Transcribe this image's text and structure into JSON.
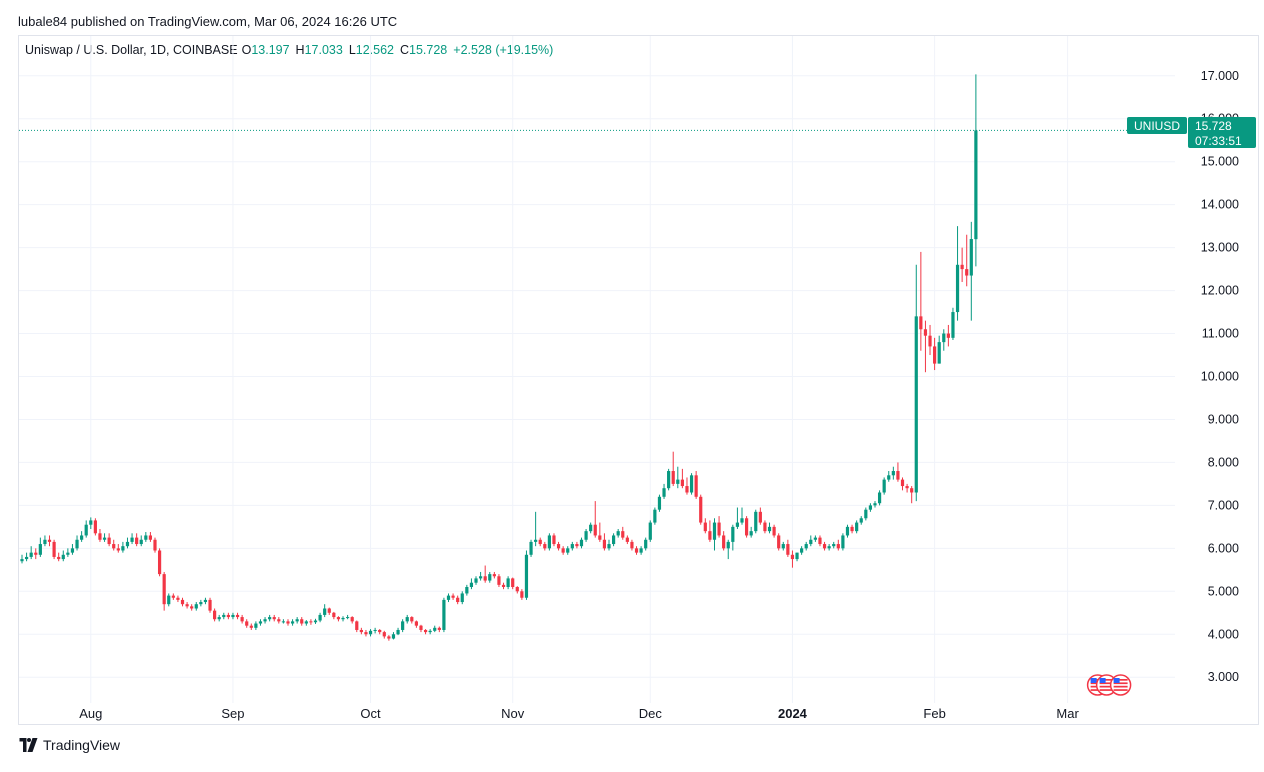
{
  "byline": "lubale84 published on TradingView.com, Mar 06, 2024 16:26 UTC",
  "legend": {
    "symbol": "Uniswap / U.S. Dollar, 1D, COINBASE",
    "o_label": "O",
    "o": "13.197",
    "h_label": "H",
    "h": "17.033",
    "l_label": "L",
    "l": "12.562",
    "c_label": "C",
    "c": "15.728",
    "change": "+2.528 (+19.15%)"
  },
  "price_tag": {
    "symbol": "UNIUSD",
    "price": "15.728",
    "countdown": "07:33:51"
  },
  "footer": {
    "brand": "TradingView",
    "logo_icon": "tradingview-logo-icon"
  },
  "colors": {
    "up": "#089981",
    "down": "#f23645",
    "grid": "#f0f3fa",
    "text": "#131722"
  },
  "chart_data": {
    "type": "candlestick",
    "y_axis": {
      "ticks": [
        "17.000",
        "16.000",
        "15.000",
        "14.000",
        "13.000",
        "12.000",
        "11.000",
        "10.000",
        "9.000",
        "8.000",
        "7.000",
        "6.000",
        "5.000",
        "4.000",
        "3.000"
      ],
      "range": [
        2.4,
        17.6
      ]
    },
    "x_axis": {
      "labels": [
        {
          "text": "Aug",
          "date": "2023-08-01",
          "bold": false
        },
        {
          "text": "Sep",
          "date": "2023-09-01",
          "bold": false
        },
        {
          "text": "Oct",
          "date": "2023-10-01",
          "bold": false
        },
        {
          "text": "Nov",
          "date": "2023-11-01",
          "bold": false
        },
        {
          "text": "Dec",
          "date": "2023-12-01",
          "bold": false
        },
        {
          "text": "2024",
          "date": "2024-01-01",
          "bold": true
        },
        {
          "text": "Feb",
          "date": "2024-02-01",
          "bold": false
        },
        {
          "text": "Mar",
          "date": "2024-03-01",
          "bold": false
        }
      ]
    },
    "start_date": "2023-07-17",
    "close": [
      5.75,
      5.8,
      5.9,
      5.85,
      6.1,
      6.2,
      6.15,
      5.8,
      5.75,
      5.85,
      5.9,
      6.0,
      6.2,
      6.3,
      6.55,
      6.65,
      6.35,
      6.2,
      6.25,
      6.1,
      6.0,
      5.95,
      6.05,
      6.15,
      6.25,
      6.1,
      6.2,
      6.3,
      6.2,
      5.95,
      5.4,
      4.7,
      4.9,
      4.85,
      4.8,
      4.7,
      4.65,
      4.6,
      4.7,
      4.75,
      4.8,
      4.55,
      4.35,
      4.4,
      4.45,
      4.4,
      4.45,
      4.4,
      4.3,
      4.2,
      4.15,
      4.25,
      4.3,
      4.35,
      4.4,
      4.35,
      4.3,
      4.3,
      4.25,
      4.3,
      4.35,
      4.25,
      4.3,
      4.28,
      4.32,
      4.45,
      4.6,
      4.5,
      4.4,
      4.35,
      4.38,
      4.4,
      4.3,
      4.1,
      4.05,
      4.0,
      4.08,
      4.1,
      4.05,
      3.95,
      3.9,
      4.0,
      4.1,
      4.3,
      4.4,
      4.3,
      4.2,
      4.1,
      4.05,
      4.08,
      4.15,
      4.1,
      4.8,
      4.9,
      4.85,
      4.75,
      4.95,
      5.1,
      5.2,
      5.3,
      5.35,
      5.25,
      5.4,
      5.35,
      5.15,
      5.1,
      5.3,
      5.1,
      5.0,
      4.85,
      5.85,
      6.15,
      6.2,
      6.1,
      6.0,
      6.3,
      6.1,
      6.0,
      5.9,
      6.0,
      6.1,
      6.05,
      6.2,
      6.4,
      6.55,
      6.3,
      6.2,
      6.0,
      6.1,
      6.3,
      6.4,
      6.25,
      6.15,
      6.0,
      5.9,
      6.0,
      6.2,
      6.6,
      6.9,
      7.2,
      7.4,
      7.8,
      7.5,
      7.6,
      7.45,
      7.3,
      7.7,
      7.2,
      6.6,
      6.4,
      6.2,
      6.6,
      6.3,
      6.0,
      6.15,
      6.5,
      6.6,
      6.7,
      6.3,
      6.4,
      6.85,
      6.6,
      6.4,
      6.5,
      6.3,
      6.0,
      6.1,
      5.85,
      5.75,
      5.9,
      6.0,
      6.1,
      6.2,
      6.25,
      6.1,
      6.0,
      6.05,
      6.1,
      6.0,
      6.3,
      6.5,
      6.4,
      6.6,
      6.7,
      6.9,
      7.0,
      7.05,
      7.3,
      7.6,
      7.7,
      7.8,
      7.6,
      7.45,
      7.4,
      7.3,
      11.4,
      11.1,
      10.95,
      10.7,
      10.3,
      10.8,
      11.0,
      10.9,
      11.5,
      12.6,
      12.5,
      12.35,
      13.2,
      15.728
    ],
    "open": [
      5.7,
      5.75,
      5.8,
      5.9,
      5.85,
      6.1,
      6.2,
      6.15,
      5.8,
      5.75,
      5.85,
      5.9,
      6.0,
      6.2,
      6.3,
      6.55,
      6.65,
      6.35,
      6.2,
      6.25,
      6.1,
      6.0,
      5.95,
      6.05,
      6.15,
      6.25,
      6.1,
      6.2,
      6.3,
      6.2,
      5.95,
      5.4,
      4.7,
      4.9,
      4.85,
      4.8,
      4.7,
      4.65,
      4.6,
      4.7,
      4.75,
      4.8,
      4.55,
      4.35,
      4.4,
      4.45,
      4.4,
      4.45,
      4.4,
      4.3,
      4.2,
      4.15,
      4.25,
      4.3,
      4.35,
      4.4,
      4.35,
      4.3,
      4.3,
      4.25,
      4.3,
      4.35,
      4.25,
      4.3,
      4.28,
      4.32,
      4.45,
      4.6,
      4.5,
      4.4,
      4.35,
      4.38,
      4.4,
      4.3,
      4.1,
      4.05,
      4.0,
      4.08,
      4.1,
      4.05,
      3.95,
      3.9,
      4.0,
      4.1,
      4.3,
      4.4,
      4.3,
      4.2,
      4.1,
      4.05,
      4.08,
      4.15,
      4.1,
      4.8,
      4.9,
      4.85,
      4.75,
      4.95,
      5.1,
      5.2,
      5.3,
      5.35,
      5.25,
      5.4,
      5.35,
      5.15,
      5.1,
      5.3,
      5.1,
      5.0,
      4.85,
      5.85,
      6.15,
      6.2,
      6.1,
      6.0,
      6.3,
      6.1,
      6.0,
      5.9,
      6.0,
      6.1,
      6.05,
      6.2,
      6.4,
      6.55,
      6.3,
      6.2,
      6.0,
      6.1,
      6.3,
      6.4,
      6.25,
      6.15,
      6.0,
      5.9,
      6.0,
      6.2,
      6.6,
      6.9,
      7.2,
      7.4,
      7.8,
      7.5,
      7.6,
      7.45,
      7.3,
      7.7,
      7.2,
      6.6,
      6.4,
      6.2,
      6.6,
      6.3,
      6.0,
      6.15,
      6.5,
      6.6,
      6.7,
      6.3,
      6.4,
      6.85,
      6.6,
      6.4,
      6.5,
      6.3,
      6.0,
      6.1,
      5.85,
      5.75,
      5.9,
      6.0,
      6.1,
      6.2,
      6.25,
      6.1,
      6.0,
      6.05,
      6.1,
      6.0,
      6.3,
      6.5,
      6.4,
      6.6,
      6.7,
      6.9,
      7.0,
      7.05,
      7.3,
      7.6,
      7.7,
      7.8,
      7.6,
      7.45,
      7.4,
      7.3,
      11.4,
      11.1,
      10.95,
      10.7,
      10.3,
      10.8,
      11.0,
      10.9,
      11.5,
      12.6,
      12.5,
      12.35,
      13.197
    ],
    "high": [
      5.85,
      5.9,
      6.05,
      6.0,
      6.25,
      6.3,
      6.3,
      6.2,
      5.9,
      5.95,
      6.0,
      6.1,
      6.3,
      6.4,
      6.65,
      6.72,
      6.7,
      6.45,
      6.35,
      6.35,
      6.2,
      6.1,
      6.15,
      6.25,
      6.35,
      6.35,
      6.3,
      6.38,
      6.38,
      6.25,
      6.0,
      5.45,
      4.95,
      4.95,
      4.9,
      4.85,
      4.75,
      4.7,
      4.75,
      4.8,
      4.85,
      4.85,
      4.6,
      4.45,
      4.5,
      4.5,
      4.5,
      4.5,
      4.45,
      4.35,
      4.25,
      4.3,
      4.35,
      4.4,
      4.45,
      4.45,
      4.4,
      4.35,
      4.35,
      4.35,
      4.4,
      4.4,
      4.33,
      4.35,
      4.36,
      4.5,
      4.7,
      4.62,
      4.52,
      4.42,
      4.42,
      4.45,
      4.42,
      4.32,
      4.15,
      4.1,
      4.12,
      4.15,
      4.12,
      4.08,
      3.98,
      4.05,
      4.15,
      4.35,
      4.45,
      4.42,
      4.32,
      4.22,
      4.12,
      4.12,
      4.2,
      4.18,
      4.85,
      4.95,
      4.95,
      4.9,
      5.0,
      5.15,
      5.3,
      5.35,
      5.45,
      5.6,
      5.45,
      5.45,
      5.4,
      5.2,
      5.35,
      5.32,
      5.12,
      5.05,
      5.95,
      6.2,
      6.85,
      6.25,
      6.15,
      6.35,
      6.35,
      6.15,
      6.05,
      6.05,
      6.15,
      6.15,
      6.25,
      6.45,
      6.6,
      7.1,
      6.6,
      6.35,
      6.2,
      6.35,
      6.45,
      6.5,
      6.3,
      6.2,
      6.05,
      6.05,
      6.25,
      6.65,
      6.95,
      7.25,
      7.5,
      7.85,
      8.25,
      7.9,
      7.85,
      7.65,
      7.75,
      7.8,
      7.25,
      6.7,
      6.65,
      6.7,
      6.75,
      6.4,
      6.2,
      6.55,
      6.95,
      6.95,
      6.75,
      6.5,
      6.9,
      6.95,
      6.65,
      6.6,
      6.55,
      6.35,
      6.15,
      6.2,
      5.95,
      5.9,
      6.05,
      6.15,
      6.3,
      6.3,
      6.3,
      6.15,
      6.1,
      6.15,
      6.2,
      6.35,
      6.55,
      6.55,
      6.65,
      6.75,
      6.95,
      7.05,
      7.1,
      7.35,
      7.65,
      7.8,
      7.9,
      8.0,
      7.65,
      7.5,
      7.45,
      12.6,
      12.9,
      11.3,
      11.2,
      10.9,
      10.95,
      11.1,
      11.2,
      11.6,
      13.5,
      13.0,
      13.3,
      13.6,
      17.033
    ],
    "low": [
      5.65,
      5.7,
      5.75,
      5.75,
      5.8,
      6.05,
      6.05,
      5.75,
      5.7,
      5.7,
      5.8,
      5.85,
      5.95,
      6.15,
      6.25,
      6.45,
      6.3,
      6.15,
      6.15,
      6.05,
      5.95,
      5.9,
      5.9,
      6.0,
      6.1,
      6.05,
      6.05,
      6.15,
      6.15,
      5.9,
      5.35,
      4.55,
      4.65,
      4.8,
      4.75,
      4.65,
      4.6,
      4.55,
      4.55,
      4.65,
      4.7,
      4.5,
      4.3,
      4.3,
      4.35,
      4.35,
      4.35,
      4.35,
      4.25,
      4.15,
      4.1,
      4.1,
      4.2,
      4.25,
      4.3,
      4.3,
      4.25,
      4.25,
      4.2,
      4.2,
      4.25,
      4.2,
      4.2,
      4.22,
      4.24,
      4.28,
      4.4,
      4.45,
      4.35,
      4.3,
      4.3,
      4.35,
      4.25,
      4.05,
      4.0,
      3.95,
      3.95,
      4.02,
      4.0,
      3.9,
      3.85,
      3.88,
      3.98,
      4.05,
      4.25,
      4.25,
      4.15,
      4.05,
      4.0,
      4.0,
      4.05,
      4.05,
      4.05,
      4.75,
      4.8,
      4.7,
      4.7,
      4.9,
      5.05,
      5.15,
      5.25,
      5.2,
      5.2,
      5.3,
      5.1,
      5.05,
      5.05,
      5.05,
      4.95,
      4.8,
      4.8,
      5.8,
      6.05,
      6.05,
      5.95,
      5.95,
      6.05,
      5.95,
      5.85,
      5.85,
      5.95,
      6.0,
      6.0,
      6.15,
      6.35,
      6.25,
      6.15,
      5.95,
      5.95,
      6.05,
      6.25,
      6.2,
      6.1,
      5.95,
      5.85,
      5.85,
      5.95,
      6.15,
      6.55,
      6.85,
      7.15,
      7.35,
      7.45,
      7.4,
      7.4,
      7.25,
      7.25,
      7.15,
      6.55,
      6.35,
      6.15,
      5.95,
      6.25,
      5.95,
      5.75,
      5.95,
      6.45,
      6.55,
      6.25,
      6.25,
      6.35,
      6.55,
      6.35,
      6.35,
      6.25,
      5.95,
      5.95,
      5.8,
      5.55,
      5.7,
      5.85,
      5.95,
      6.05,
      6.15,
      6.05,
      5.95,
      5.95,
      6.0,
      5.95,
      5.95,
      6.25,
      6.35,
      6.35,
      6.55,
      6.65,
      6.85,
      6.95,
      7.0,
      7.25,
      7.55,
      7.6,
      7.55,
      7.35,
      7.3,
      7.05,
      7.1,
      10.6,
      10.1,
      10.5,
      10.15,
      10.3,
      10.6,
      10.7,
      10.85,
      11.3,
      12.2,
      12.1,
      11.3,
      12.562
    ]
  }
}
